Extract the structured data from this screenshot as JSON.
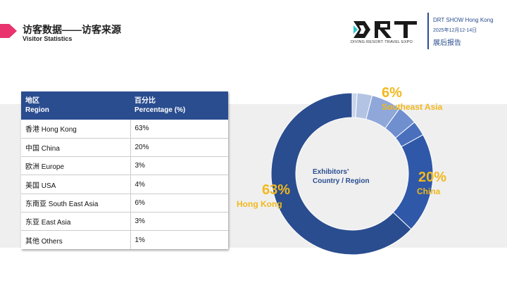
{
  "header": {
    "title_zh": "访客数据——访客来源",
    "title_en": "Visitor Statistics",
    "logo_tagline": "DIVING·RESORT·TRAVEL EXPO",
    "show_name": "DRT SHOW Hong Kong",
    "show_date": "2025年12月12-14日",
    "show_report": "展后报告"
  },
  "table": {
    "headers": [
      {
        "zh": "地区",
        "en": "Region"
      },
      {
        "zh": "百分比",
        "en": "Percentage (%)"
      }
    ],
    "rows": [
      {
        "region": "香港 Hong Kong",
        "pct": "63%"
      },
      {
        "region": "中国 China",
        "pct": "20%"
      },
      {
        "region": "欧洲 Europe",
        "pct": "3%"
      },
      {
        "region": "美国 USA",
        "pct": "4%"
      },
      {
        "region": "东南亚 South East Asia",
        "pct": "6%"
      },
      {
        "region": "东亚 East Asia",
        "pct": "3%"
      },
      {
        "region": "其他 Others",
        "pct": "1%"
      }
    ]
  },
  "chart_data": {
    "type": "pie",
    "center_label_line1": "Exhibitors’",
    "center_label_line2": "Country / Region",
    "slices": [
      {
        "label": "Others",
        "value": 1,
        "color": "#c9d4ea"
      },
      {
        "label": "East Asia",
        "value": 3,
        "color": "#b3c3e3"
      },
      {
        "label": "Southeast Asia",
        "value": 6,
        "color": "#8fa7d9"
      },
      {
        "label": "USA",
        "value": 4,
        "color": "#6f8fcf"
      },
      {
        "label": "Europe",
        "value": 3,
        "color": "#4a70bd"
      },
      {
        "label": "China",
        "value": 20,
        "color": "#2f58a8"
      },
      {
        "label": "Hong Kong",
        "value": 63,
        "color": "#2a4d8f"
      }
    ],
    "callouts": [
      {
        "pct": "6%",
        "text": "Southeast Asia"
      },
      {
        "pct": "20%",
        "text": "China"
      },
      {
        "pct": "63%",
        "text": "Hong Kong"
      }
    ]
  }
}
